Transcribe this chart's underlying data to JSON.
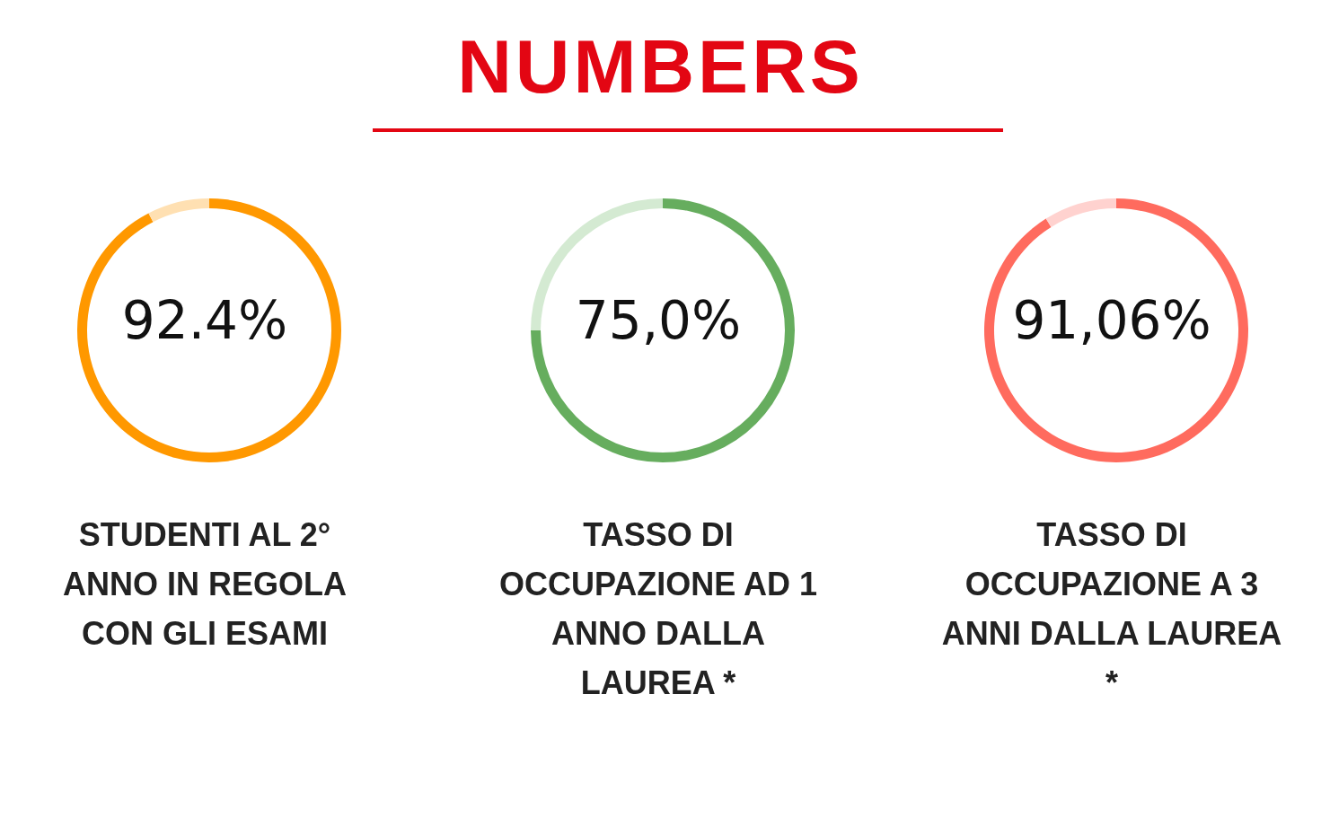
{
  "chart_data": [
    {
      "type": "other",
      "title": "NUMBERS"
    },
    {
      "type": "donut",
      "title": "STUDENTI AL 2° ANNO IN REGOLA CON GLI ESAMI",
      "categories": [
        null,
        null
      ],
      "values": [
        92.4,
        7.6
      ],
      "colors": [
        "#ff9800",
        "#ffe0b2"
      ],
      "annotations": [
        "92.4%"
      ]
    },
    {
      "type": "donut",
      "title": "TASSO DI OCCUPAZIONE AD 1 ANNO DALLA LAUREA *",
      "categories": [
        null,
        null
      ],
      "values": [
        75.0,
        25.0
      ],
      "colors": [
        "#66ad5e",
        "#d4ead2"
      ],
      "annotations": [
        "75,0%"
      ]
    },
    {
      "type": "donut",
      "title": "TASSO DI OCCUPAZIONE A 3 ANNI DALLA LAUREA *",
      "categories": [
        null,
        null
      ],
      "values": [
        91.06,
        8.94
      ],
      "colors": [
        "#ff6b5e",
        "#ffd2cf"
      ],
      "annotations": [
        "91,06%"
      ]
    }
  ]
}
